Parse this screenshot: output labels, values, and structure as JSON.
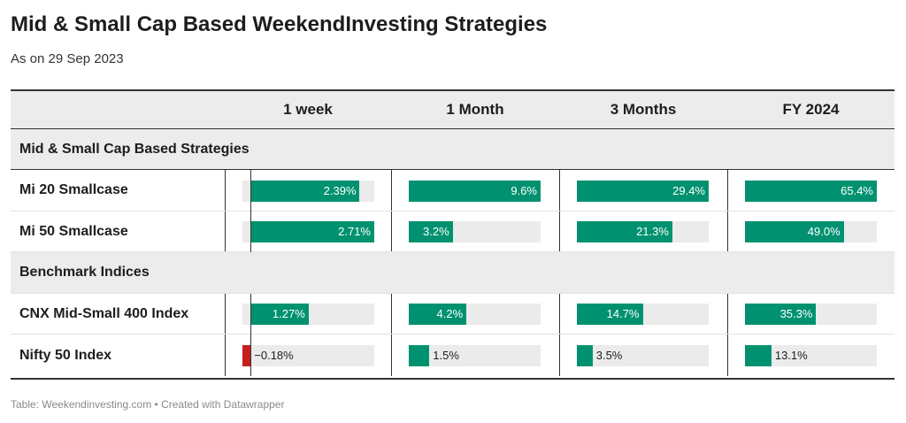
{
  "header": {
    "title": "Mid & Small Cap Based WeekendInvesting Strategies",
    "subtitle": "As on 29 Sep 2023"
  },
  "footer": "Table: Weekendinvesting.com • Created with Datawrapper",
  "colors": {
    "positive": "#009270",
    "negative": "#c71e1d",
    "track": "#ebebeb",
    "header_bg": "#ececec"
  },
  "chart_data": {
    "type": "table",
    "columns": [
      "1 week",
      "1 Month",
      "3 Months",
      "FY 2024"
    ],
    "column_ranges": [
      [
        -0.18,
        2.71
      ],
      [
        0,
        9.6
      ],
      [
        0,
        29.4
      ],
      [
        0,
        65.4
      ]
    ],
    "groups": [
      {
        "label": "Mid & Small Cap Based Strategies",
        "rows": [
          {
            "name": "Mi 20 Smallcase",
            "values": [
              2.39,
              9.6,
              29.4,
              65.4
            ],
            "labels": [
              "2.39%",
              "9.6%",
              "29.4%",
              "65.4%"
            ]
          },
          {
            "name": "Mi 50 Smallcase",
            "values": [
              2.71,
              3.2,
              21.3,
              49.0
            ],
            "labels": [
              "2.71%",
              "3.2%",
              "21.3%",
              "49.0%"
            ]
          }
        ]
      },
      {
        "label": "Benchmark Indices",
        "rows": [
          {
            "name": "CNX Mid-Small 400 Index",
            "values": [
              1.27,
              4.2,
              14.7,
              35.3
            ],
            "labels": [
              "1.27%",
              "4.2%",
              "14.7%",
              "35.3%"
            ]
          },
          {
            "name": "Nifty 50 Index",
            "values": [
              -0.18,
              1.5,
              3.5,
              13.1
            ],
            "labels": [
              "−0.18%",
              "1.5%",
              "3.5%",
              "13.1%"
            ]
          }
        ]
      }
    ]
  }
}
